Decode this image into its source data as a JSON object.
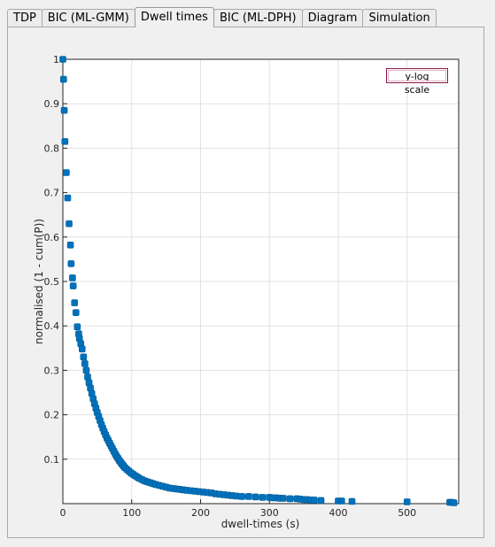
{
  "tabs": [
    {
      "label": "TDP",
      "active": false
    },
    {
      "label": "BIC (ML-GMM)",
      "active": false
    },
    {
      "label": "Dwell times",
      "active": true
    },
    {
      "label": "BIC (ML-DPH)",
      "active": false
    },
    {
      "label": "Diagram",
      "active": false
    },
    {
      "label": "Simulation",
      "active": false
    }
  ],
  "log_button_label": "y-log scale",
  "chart_data": {
    "type": "scatter",
    "xlabel": "dwell-times (s)",
    "ylabel": "normalised (1 - cum(P))",
    "xlim": [
      0,
      575
    ],
    "ylim": [
      0,
      1
    ],
    "xticks": [
      "0",
      "100",
      "200",
      "300",
      "400",
      "500"
    ],
    "yticks": [
      "0.1",
      "0.2",
      "0.3",
      "0.4",
      "0.5",
      "0.6",
      "0.7",
      "0.8",
      "0.9",
      "1"
    ],
    "grid": true,
    "marker_color": "#0072bd",
    "x": [
      0,
      1,
      2,
      3,
      5,
      7,
      9,
      11,
      12,
      14,
      15,
      17,
      19,
      21,
      23,
      24,
      26,
      28,
      30,
      32,
      34,
      36,
      38,
      40,
      42,
      44,
      46,
      48,
      50,
      52,
      54,
      56,
      58,
      60,
      62,
      64,
      66,
      68,
      70,
      72,
      74,
      76,
      78,
      80,
      82,
      84,
      86,
      88,
      90,
      93,
      96,
      99,
      102,
      105,
      108,
      111,
      115,
      119,
      123,
      127,
      131,
      135,
      140,
      145,
      150,
      155,
      160,
      165,
      170,
      175,
      180,
      186,
      192,
      198,
      204,
      210,
      216,
      222,
      228,
      234,
      240,
      246,
      252,
      260,
      270,
      280,
      290,
      300,
      305,
      310,
      315,
      320,
      330,
      340,
      345,
      350,
      355,
      360,
      365,
      375,
      400,
      405,
      420,
      500,
      562,
      565,
      568
    ],
    "y": [
      1.0,
      0.955,
      0.885,
      0.815,
      0.745,
      0.688,
      0.63,
      0.582,
      0.54,
      0.508,
      0.49,
      0.452,
      0.43,
      0.398,
      0.382,
      0.372,
      0.36,
      0.348,
      0.33,
      0.315,
      0.3,
      0.285,
      0.272,
      0.26,
      0.248,
      0.236,
      0.225,
      0.215,
      0.205,
      0.196,
      0.187,
      0.178,
      0.17,
      0.162,
      0.155,
      0.148,
      0.142,
      0.136,
      0.13,
      0.124,
      0.118,
      0.112,
      0.107,
      0.102,
      0.097,
      0.093,
      0.089,
      0.085,
      0.081,
      0.077,
      0.073,
      0.069,
      0.066,
      0.063,
      0.06,
      0.057,
      0.054,
      0.051,
      0.049,
      0.047,
      0.045,
      0.043,
      0.041,
      0.039,
      0.037,
      0.035,
      0.034,
      0.033,
      0.032,
      0.031,
      0.03,
      0.029,
      0.028,
      0.027,
      0.026,
      0.025,
      0.024,
      0.022,
      0.021,
      0.02,
      0.019,
      0.018,
      0.017,
      0.016,
      0.016,
      0.015,
      0.014,
      0.014,
      0.013,
      0.013,
      0.012,
      0.012,
      0.011,
      0.011,
      0.01,
      0.009,
      0.009,
      0.008,
      0.008,
      0.007,
      0.006,
      0.006,
      0.005,
      0.004,
      0.003,
      0.003,
      0.002
    ]
  }
}
